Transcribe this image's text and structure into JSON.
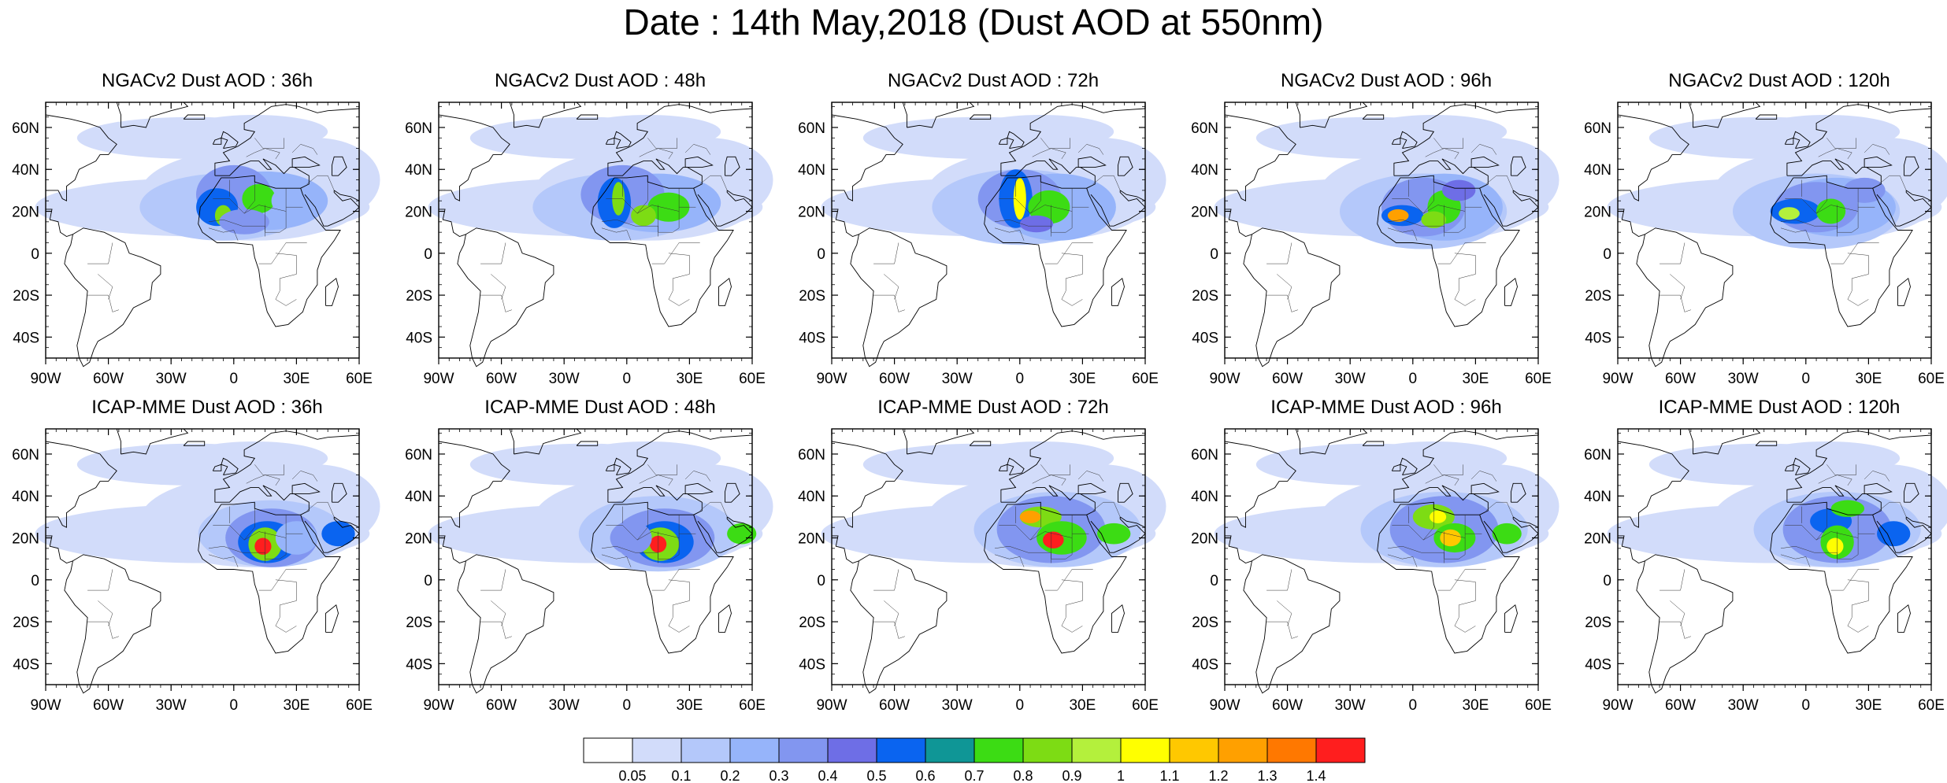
{
  "title": "Date : 14th May,2018 (Dust AOD at 550nm)",
  "axes": {
    "lat_ticks": [
      "60N",
      "40N",
      "20N",
      "0",
      "20S",
      "40S"
    ],
    "lon_ticks": [
      "90W",
      "60W",
      "30W",
      "0",
      "30E",
      "60E"
    ]
  },
  "panels": [
    {
      "title": "NGACv2 Dust AOD : 36h",
      "model": "ngac",
      "lead_h": 36
    },
    {
      "title": "NGACv2 Dust AOD : 48h",
      "model": "ngac",
      "lead_h": 48
    },
    {
      "title": "NGACv2 Dust AOD : 72h",
      "model": "ngac",
      "lead_h": 72
    },
    {
      "title": "NGACv2 Dust AOD : 96h",
      "model": "ngac",
      "lead_h": 96
    },
    {
      "title": "NGACv2 Dust AOD : 120h",
      "model": "ngac",
      "lead_h": 120
    },
    {
      "title": "ICAP-MME Dust AOD : 36h",
      "model": "icap",
      "lead_h": 36
    },
    {
      "title": "ICAP-MME Dust AOD : 48h",
      "model": "icap",
      "lead_h": 48
    },
    {
      "title": "ICAP-MME Dust AOD : 72h",
      "model": "icap",
      "lead_h": 72
    },
    {
      "title": "ICAP-MME Dust AOD : 96h",
      "model": "icap",
      "lead_h": 96
    },
    {
      "title": "ICAP-MME Dust AOD : 120h",
      "model": "icap",
      "lead_h": 120
    }
  ],
  "colorbar": {
    "labels": [
      "0.05",
      "0.1",
      "0.2",
      "0.3",
      "0.4",
      "0.5",
      "0.6",
      "0.7",
      "0.8",
      "0.9",
      "1",
      "1.1",
      "1.2",
      "1.3",
      "1.4"
    ],
    "colors": [
      "#ffffff",
      "#d2dcfa",
      "#b4c8fa",
      "#96b4fa",
      "#8296f0",
      "#6e6ee6",
      "#0a64f0",
      "#0f9696",
      "#3cdc14",
      "#7ddc14",
      "#b4f03c",
      "#ffff00",
      "#ffc800",
      "#ffa000",
      "#ff7800",
      "#ff1e1e"
    ]
  }
}
